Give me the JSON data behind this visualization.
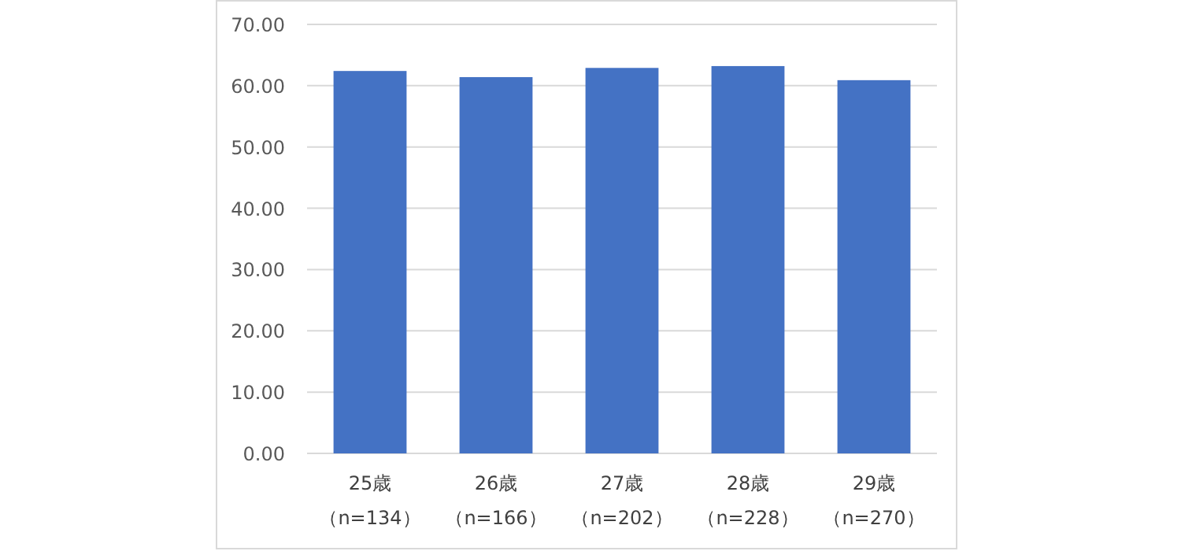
{
  "chart_data": {
    "type": "bar",
    "categories": [
      "25歳（n=134）",
      "26歳（n=166）",
      "27歳（n=202）",
      "28歳（n=228）",
      "29歳（n=270）"
    ],
    "values": [
      62.4,
      61.4,
      62.9,
      63.2,
      60.9
    ],
    "color": "#4472c4",
    "ylim": [
      0,
      70
    ],
    "yticks": [
      {
        "value": 0,
        "label": "0.00"
      },
      {
        "value": 10,
        "label": "10.00"
      },
      {
        "value": 20,
        "label": "20.00"
      },
      {
        "value": 30,
        "label": "30.00"
      },
      {
        "value": 40,
        "label": "40.00"
      },
      {
        "value": 50,
        "label": "50.00"
      },
      {
        "value": 60,
        "label": "60.00"
      },
      {
        "value": 70,
        "label": "70.00"
      }
    ],
    "grid": "y"
  }
}
